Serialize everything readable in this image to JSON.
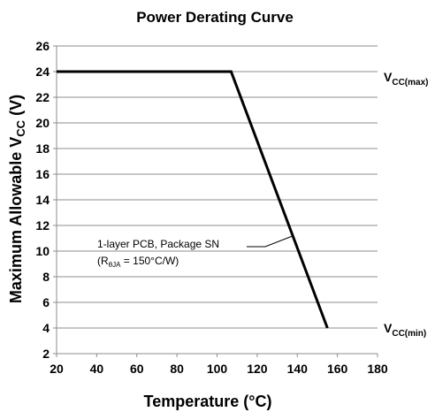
{
  "chart_data": {
    "type": "line",
    "title": "Power Derating Curve",
    "xlabel": "Temperature (°C)",
    "ylabel": {
      "main": "Maximum Allowable V",
      "sub": "CC",
      "tail": " (V)"
    },
    "xlim": [
      20,
      180
    ],
    "ylim": [
      2,
      26
    ],
    "x_ticks": [
      20,
      40,
      60,
      80,
      100,
      120,
      140,
      160,
      180
    ],
    "y_ticks": [
      2,
      4,
      6,
      8,
      10,
      12,
      14,
      16,
      18,
      20,
      22,
      24,
      26
    ],
    "grid": "horizontal",
    "series": [
      {
        "x": [
          20,
          107,
          155
        ],
        "y": [
          24,
          24,
          4
        ],
        "color": "#000000"
      }
    ],
    "annotations": {
      "vcc_max": {
        "main": "V",
        "sub": "CC(max)",
        "y": 24
      },
      "vcc_min": {
        "main": "V",
        "sub": "CC(min)",
        "y": 4
      },
      "pcb_note": {
        "line1": "1-layer PCB, Package SN",
        "line2_open": "(R",
        "line2_sub": "θJA",
        "line2_close": " = 150°C/W)",
        "pointer_target": {
          "x": 138,
          "y": 11.2
        }
      }
    }
  }
}
